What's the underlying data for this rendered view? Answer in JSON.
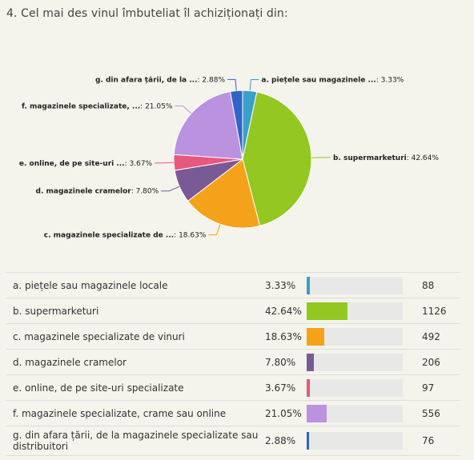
{
  "question": {
    "title": "4. Cel mai des vinul îmbuteliat îl achiziționați din:"
  },
  "chart_data": {
    "type": "pie",
    "title": "",
    "slices": [
      {
        "chart_label": "a. piețele sau magazinele ...",
        "label": "a. piețele sau magazinele locale",
        "percent": 3.33,
        "pct_text": "3.33%",
        "count": 88,
        "color": "#3aa0c8"
      },
      {
        "chart_label": "b. supermarketuri",
        "label": "b. supermarketuri",
        "percent": 42.64,
        "pct_text": "42.64%",
        "count": 1126,
        "color": "#93c822"
      },
      {
        "chart_label": "c. magazinele specializate de ...",
        "label": "c. magazinele specializate de vinuri",
        "percent": 18.63,
        "pct_text": "18.63%",
        "count": 492,
        "color": "#f5a21b"
      },
      {
        "chart_label": "d. magazinele cramelor",
        "label": "d. magazinele cramelor",
        "percent": 7.8,
        "pct_text": "7.80%",
        "count": 206,
        "color": "#7a5a94"
      },
      {
        "chart_label": "e. online, de pe site-uri ...",
        "label": "e. online, de pe site-uri specializate",
        "percent": 3.67,
        "pct_text": "3.67%",
        "count": 97,
        "color": "#e8577e"
      },
      {
        "chart_label": "f. magazinele specializate, ...",
        "label": "f. magazinele specializate, crame sau online",
        "percent": 21.05,
        "pct_text": "21.05%",
        "count": 556,
        "color": "#bb92df"
      },
      {
        "chart_label": "g. din afara țării, de la ...",
        "label": "g. din afara țării, de la magazinele specializate sau distribuitori",
        "percent": 2.88,
        "pct_text": "2.88%",
        "count": 76,
        "color": "#3064c6"
      }
    ]
  }
}
